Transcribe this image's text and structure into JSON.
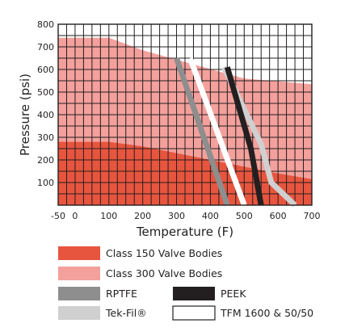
{
  "chart_data": {
    "type": "area",
    "xlabel": "Temperature (F)",
    "ylabel": "Pressure (psi)",
    "xlim": [
      -50,
      700
    ],
    "ylim": [
      0,
      800
    ],
    "x_ticks": [
      "-50",
      "0",
      "100",
      "200",
      "300",
      "400",
      "500",
      "600",
      "700"
    ],
    "y_ticks": [
      "100",
      "200",
      "300",
      "400",
      "500",
      "600",
      "700",
      "800"
    ],
    "grid": true,
    "legend_position": "bottom",
    "series": [
      {
        "name": "Class 300 Valve Bodies",
        "kind": "area",
        "color": "#f4a09c",
        "points": [
          [
            -50,
            740
          ],
          [
            100,
            740
          ],
          [
            200,
            685
          ],
          [
            500,
            560
          ],
          [
            700,
            535
          ]
        ]
      },
      {
        "name": "Class 150 Valve Bodies",
        "kind": "area",
        "color": "#e8553e",
        "points": [
          [
            -50,
            280
          ],
          [
            100,
            280
          ],
          [
            200,
            260
          ],
          [
            400,
            200
          ],
          [
            500,
            170
          ],
          [
            600,
            140
          ],
          [
            700,
            115
          ]
        ]
      },
      {
        "name": "Tek-Fil®",
        "kind": "line",
        "color": "#d0d0d0",
        "points": [
          [
            440,
            610
          ],
          [
            550,
            270
          ],
          [
            580,
            100
          ],
          [
            650,
            0
          ]
        ]
      },
      {
        "name": "RPTFE",
        "kind": "line",
        "color": "#8e8e8e",
        "points": [
          [
            300,
            650
          ],
          [
            450,
            0
          ]
        ]
      },
      {
        "name": "PEEK",
        "kind": "line",
        "color": "#231f20",
        "points": [
          [
            450,
            610
          ],
          [
            520,
            250
          ],
          [
            550,
            0
          ]
        ]
      },
      {
        "name": "TFM 1600 & 50/50",
        "kind": "line",
        "color": "#ffffff",
        "points": [
          [
            340,
            650
          ],
          [
            500,
            0
          ]
        ]
      }
    ],
    "legend": [
      {
        "label": "Class 150 Valve Bodies",
        "color": "#e8553e"
      },
      {
        "label": "Class 300 Valve Bodies",
        "color": "#f4a09c"
      },
      {
        "label": "RPTFE",
        "color": "#8e8e8e"
      },
      {
        "label": "PEEK",
        "color": "#231f20"
      },
      {
        "label": "Tek-Fil®",
        "color": "#d0d0d0"
      },
      {
        "label": "TFM 1600 & 50/50",
        "color": "#ffffff"
      }
    ]
  }
}
